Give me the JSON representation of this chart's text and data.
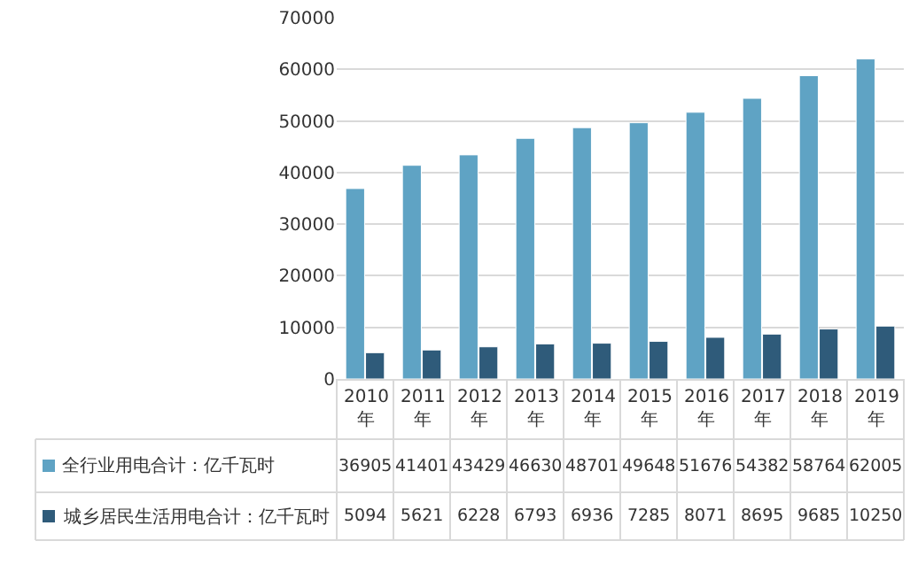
{
  "chart_data": {
    "type": "bar",
    "categories": [
      "2010年",
      "2011年",
      "2012年",
      "2013年",
      "2014年",
      "2015年",
      "2016年",
      "2017年",
      "2018年",
      "2019年"
    ],
    "series": [
      {
        "name": "全行业用电合计：亿千瓦时",
        "color": "#5fa3c4",
        "values": [
          36905,
          41401,
          43429,
          46630,
          48701,
          49648,
          51676,
          54382,
          58764,
          62005
        ]
      },
      {
        "name": "城乡居民生活用电合计：亿千瓦时",
        "color": "#2f5b7a",
        "values": [
          5094,
          5621,
          6228,
          6793,
          6936,
          7285,
          8071,
          8695,
          9685,
          10250
        ]
      }
    ],
    "ylim": [
      0,
      70000
    ],
    "yticks": [
      0,
      10000,
      20000,
      30000,
      40000,
      50000,
      60000,
      70000
    ],
    "grid": "y",
    "legend": "bottom",
    "data_labels": true
  }
}
